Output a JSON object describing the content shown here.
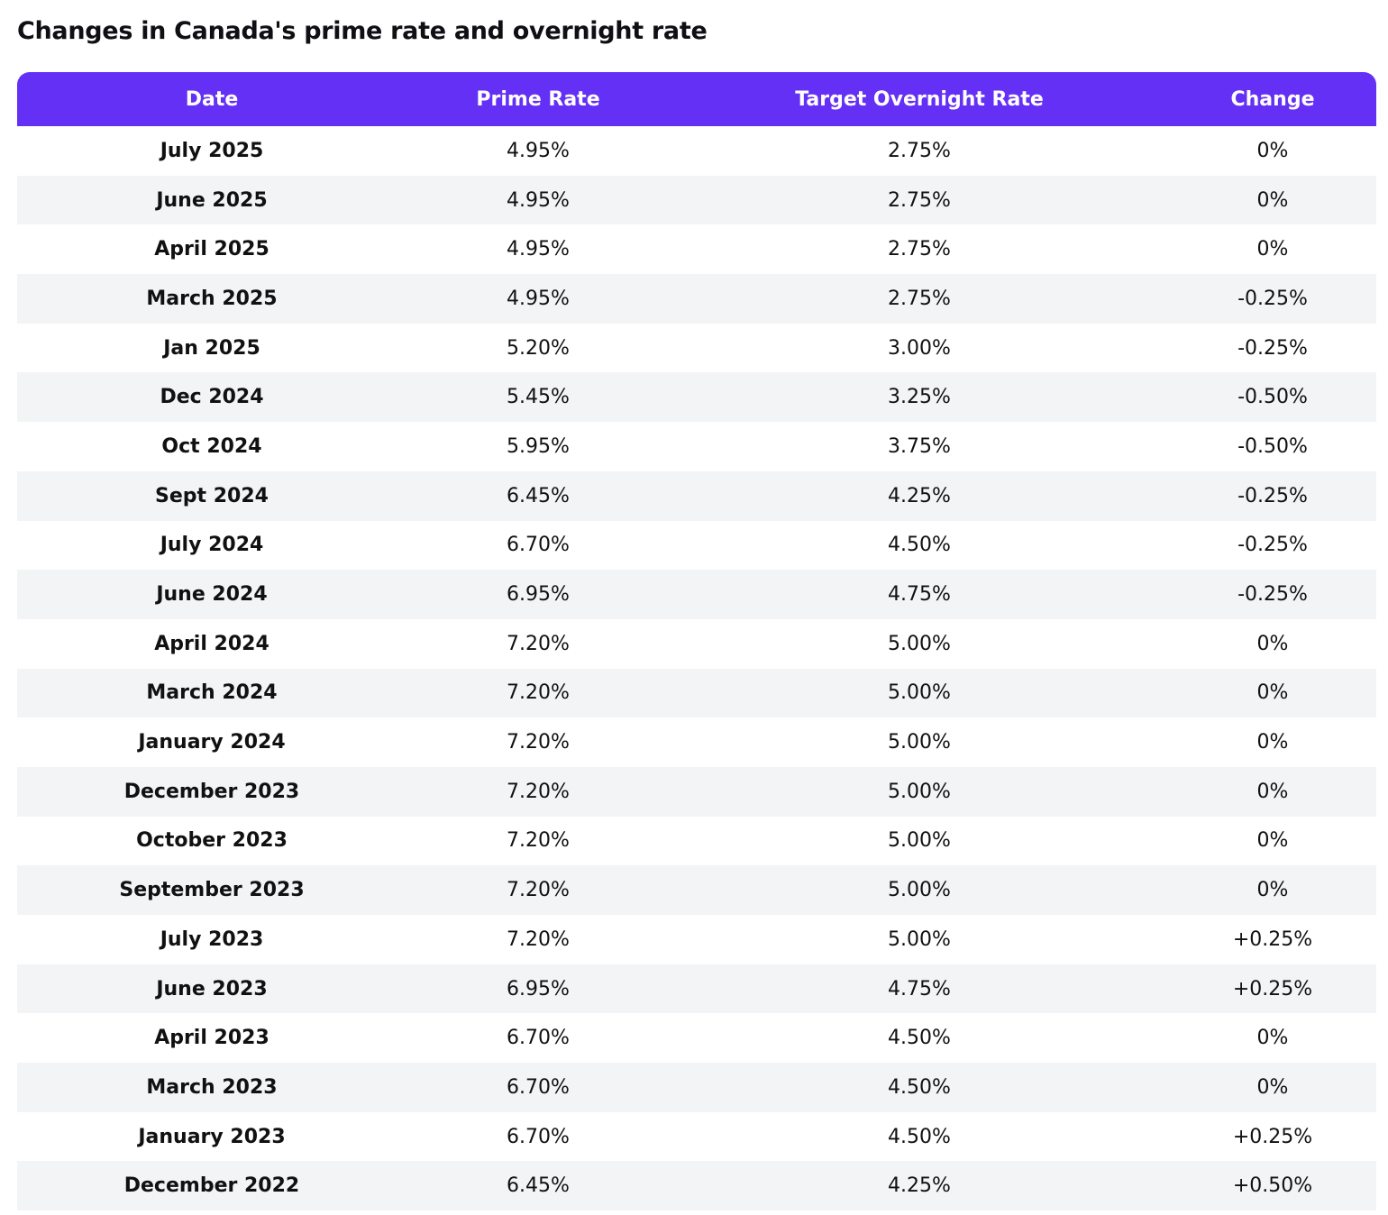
{
  "page": {
    "title": "Changes in Canada's prime rate and overnight rate"
  },
  "colors": {
    "header_bg": "#6530f5",
    "header_text": "#ffffff",
    "stripe_bg": "#f3f4f6"
  },
  "table": {
    "headers": [
      "Date",
      "Prime Rate",
      "Target Overnight Rate",
      "Change"
    ],
    "rows": [
      [
        "July 2025",
        "4.95%",
        "2.75%",
        "0%"
      ],
      [
        "June 2025",
        "4.95%",
        "2.75%",
        "0%"
      ],
      [
        "April 2025",
        "4.95%",
        "2.75%",
        "0%"
      ],
      [
        "March 2025",
        "4.95%",
        "2.75%",
        "-0.25%"
      ],
      [
        "Jan 2025",
        "5.20%",
        "3.00%",
        "-0.25%"
      ],
      [
        "Dec 2024",
        "5.45%",
        "3.25%",
        "-0.50%"
      ],
      [
        "Oct 2024",
        "5.95%",
        "3.75%",
        "-0.50%"
      ],
      [
        "Sept 2024",
        "6.45%",
        "4.25%",
        "-0.25%"
      ],
      [
        "July 2024",
        "6.70%",
        "4.50%",
        "-0.25%"
      ],
      [
        "June 2024",
        "6.95%",
        "4.75%",
        "-0.25%"
      ],
      [
        "April 2024",
        "7.20%",
        "5.00%",
        "0%"
      ],
      [
        "March 2024",
        "7.20%",
        "5.00%",
        "0%"
      ],
      [
        "January 2024",
        "7.20%",
        "5.00%",
        "0%"
      ],
      [
        "December 2023",
        "7.20%",
        "5.00%",
        "0%"
      ],
      [
        "October 2023",
        "7.20%",
        "5.00%",
        "0%"
      ],
      [
        "September 2023",
        "7.20%",
        "5.00%",
        "0%"
      ],
      [
        "July 2023",
        "7.20%",
        "5.00%",
        "+0.25%"
      ],
      [
        "June 2023",
        "6.95%",
        "4.75%",
        "+0.25%"
      ],
      [
        "April 2023",
        "6.70%",
        "4.50%",
        "0%"
      ],
      [
        "March 2023",
        "6.70%",
        "4.50%",
        "0%"
      ],
      [
        "January 2023",
        "6.70%",
        "4.50%",
        "+0.25%"
      ],
      [
        "December 2022",
        "6.45%",
        "4.25%",
        "+0.50%"
      ]
    ]
  }
}
